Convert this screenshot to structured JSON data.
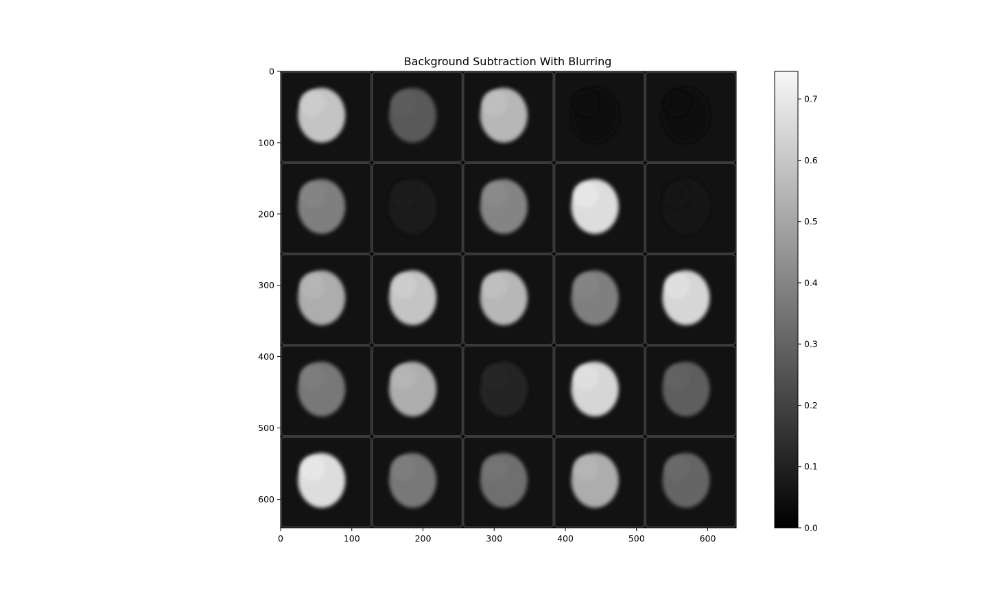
{
  "chart_data": {
    "type": "heatmap",
    "title": "Background Subtraction With Blurring",
    "xlabel": "",
    "ylabel": "",
    "xlim": [
      0,
      640
    ],
    "ylim": [
      640,
      0
    ],
    "xticks": [
      0,
      100,
      200,
      300,
      400,
      500,
      600
    ],
    "yticks": [
      0,
      100,
      200,
      300,
      400,
      500,
      600
    ],
    "colormap": "gray",
    "colorbar": {
      "range": [
        0.0,
        0.745
      ],
      "ticks": [
        "0.0",
        "0.1",
        "0.2",
        "0.3",
        "0.4",
        "0.5",
        "0.6",
        "0.7"
      ]
    },
    "grid": {
      "rows": 5,
      "cols": 5,
      "tile_size": 128
    },
    "tiles": [
      {
        "row": 0,
        "col": 0,
        "level": 0.62
      },
      {
        "row": 0,
        "col": 1,
        "level": 0.28
      },
      {
        "row": 0,
        "col": 2,
        "level": 0.58
      },
      {
        "row": 0,
        "col": 3,
        "level": 0.04
      },
      {
        "row": 0,
        "col": 4,
        "level": 0.03
      },
      {
        "row": 1,
        "col": 0,
        "level": 0.4
      },
      {
        "row": 1,
        "col": 1,
        "level": 0.08
      },
      {
        "row": 1,
        "col": 2,
        "level": 0.42
      },
      {
        "row": 1,
        "col": 3,
        "level": 0.7
      },
      {
        "row": 1,
        "col": 4,
        "level": 0.06
      },
      {
        "row": 2,
        "col": 0,
        "level": 0.55
      },
      {
        "row": 2,
        "col": 1,
        "level": 0.62
      },
      {
        "row": 2,
        "col": 2,
        "level": 0.58
      },
      {
        "row": 2,
        "col": 3,
        "level": 0.4
      },
      {
        "row": 2,
        "col": 4,
        "level": 0.68
      },
      {
        "row": 3,
        "col": 0,
        "level": 0.38
      },
      {
        "row": 3,
        "col": 1,
        "level": 0.55
      },
      {
        "row": 3,
        "col": 2,
        "level": 0.12
      },
      {
        "row": 3,
        "col": 3,
        "level": 0.68
      },
      {
        "row": 3,
        "col": 4,
        "level": 0.3
      },
      {
        "row": 4,
        "col": 0,
        "level": 0.7
      },
      {
        "row": 4,
        "col": 1,
        "level": 0.38
      },
      {
        "row": 4,
        "col": 2,
        "level": 0.35
      },
      {
        "row": 4,
        "col": 3,
        "level": 0.55
      },
      {
        "row": 4,
        "col": 4,
        "level": 0.32
      }
    ]
  }
}
